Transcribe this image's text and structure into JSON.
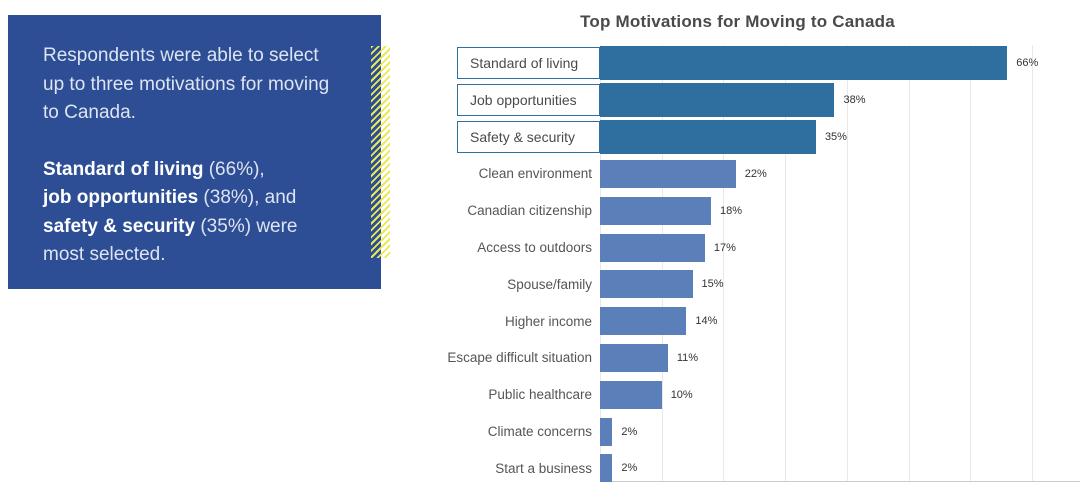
{
  "panel": {
    "intro": "Respondents were able to select up to three motivations for moving to Canada.",
    "stats": [
      {
        "bold": "Standard of living",
        "rest": " (66%),"
      },
      {
        "bold": "job opportunities",
        "rest": " (38%), and"
      },
      {
        "bold": "safety & security",
        "rest": " (35%) were"
      }
    ],
    "closing": "most selected.",
    "colors": {
      "background": "#2d4e94",
      "text": "#dde4f2",
      "bold_text": "#ffffff",
      "hatch": "#e8e954"
    }
  },
  "chart_data": {
    "type": "bar",
    "orientation": "horizontal",
    "title": "Top Motivations for Moving to Canada",
    "categories": [
      "Standard of living",
      "Job opportunities",
      "Safety & security",
      "Clean environment",
      "Canadian citizenship",
      "Access to outdoors",
      "Spouse/family",
      "Higher income",
      "Escape difficult situation",
      "Public healthcare",
      "Climate concerns",
      "Start a business"
    ],
    "values": [
      66,
      38,
      35,
      22,
      18,
      17,
      15,
      14,
      11,
      10,
      2,
      2
    ],
    "unit": "%",
    "highlighted_count": 3,
    "highlighted_categories": [
      "Standard of living",
      "Job opportunities",
      "Safety & security"
    ],
    "xlabel": "",
    "ylabel": "",
    "xlim": [
      0,
      70
    ],
    "grid_step": 10,
    "grid": true,
    "legend": false,
    "colors": {
      "highlight_bar": "#2e6f9f",
      "bar": "#5a7fb9",
      "label_box_border": "#2e6f9f",
      "grid": "#e8e8e8",
      "axis": "#cccccc",
      "title_text": "#4a4a4a",
      "label_text": "#555555",
      "value_text": "#333333"
    }
  }
}
